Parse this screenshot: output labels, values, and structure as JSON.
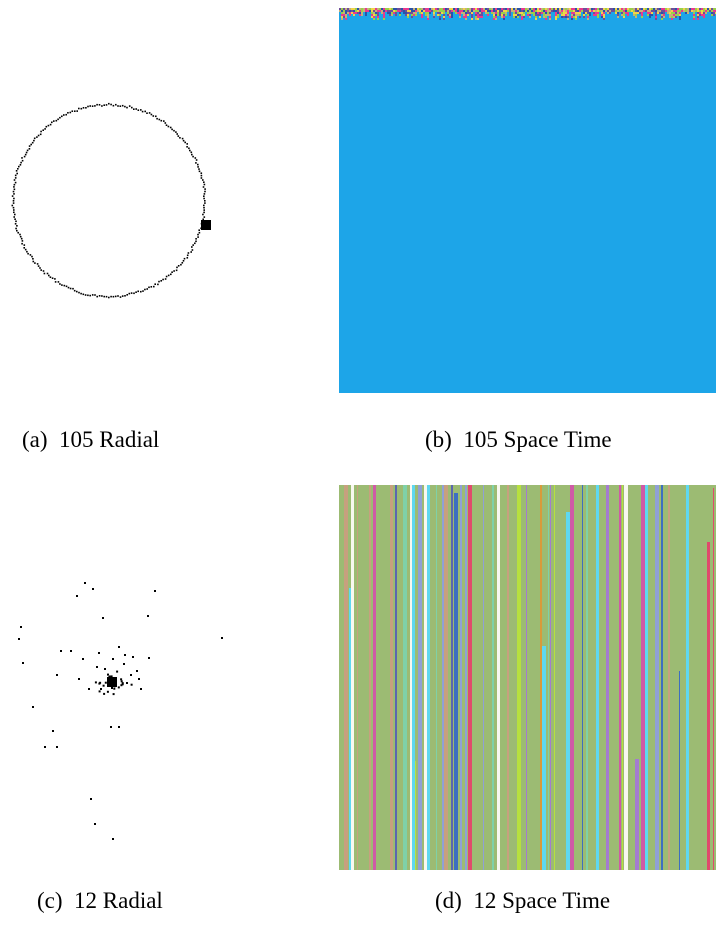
{
  "figure": {
    "panels": [
      {
        "label": "(a)",
        "title": "105 Radial",
        "kind": "radial-ring",
        "ring_color": "#000000"
      },
      {
        "label": "(b)",
        "title": "105 Space Time",
        "kind": "space-time-uniform",
        "fill_color": "#1da5e8",
        "noise_colors": [
          "#e8398f",
          "#9ad04a",
          "#2a53a8",
          "#c4b27a",
          "#6f4d9a",
          "#f2d34a"
        ]
      },
      {
        "label": "(c)",
        "title": "12 Radial",
        "kind": "radial-scatter",
        "dot_color": "#000000"
      },
      {
        "label": "(d)",
        "title": "12 Space Time",
        "kind": "space-time-stripes",
        "base_color": "#9cbb73",
        "stripe_colors": [
          "#8fa0d6",
          "#c7a07e",
          "#b7e03e",
          "#5b66b0",
          "#cf5aa6",
          "#e04a6c",
          "#f8f8f0",
          "#5ed8f0",
          "#7fd1a8",
          "#a47bd0",
          "#d99a3a",
          "#3d6fc0"
        ]
      }
    ]
  }
}
